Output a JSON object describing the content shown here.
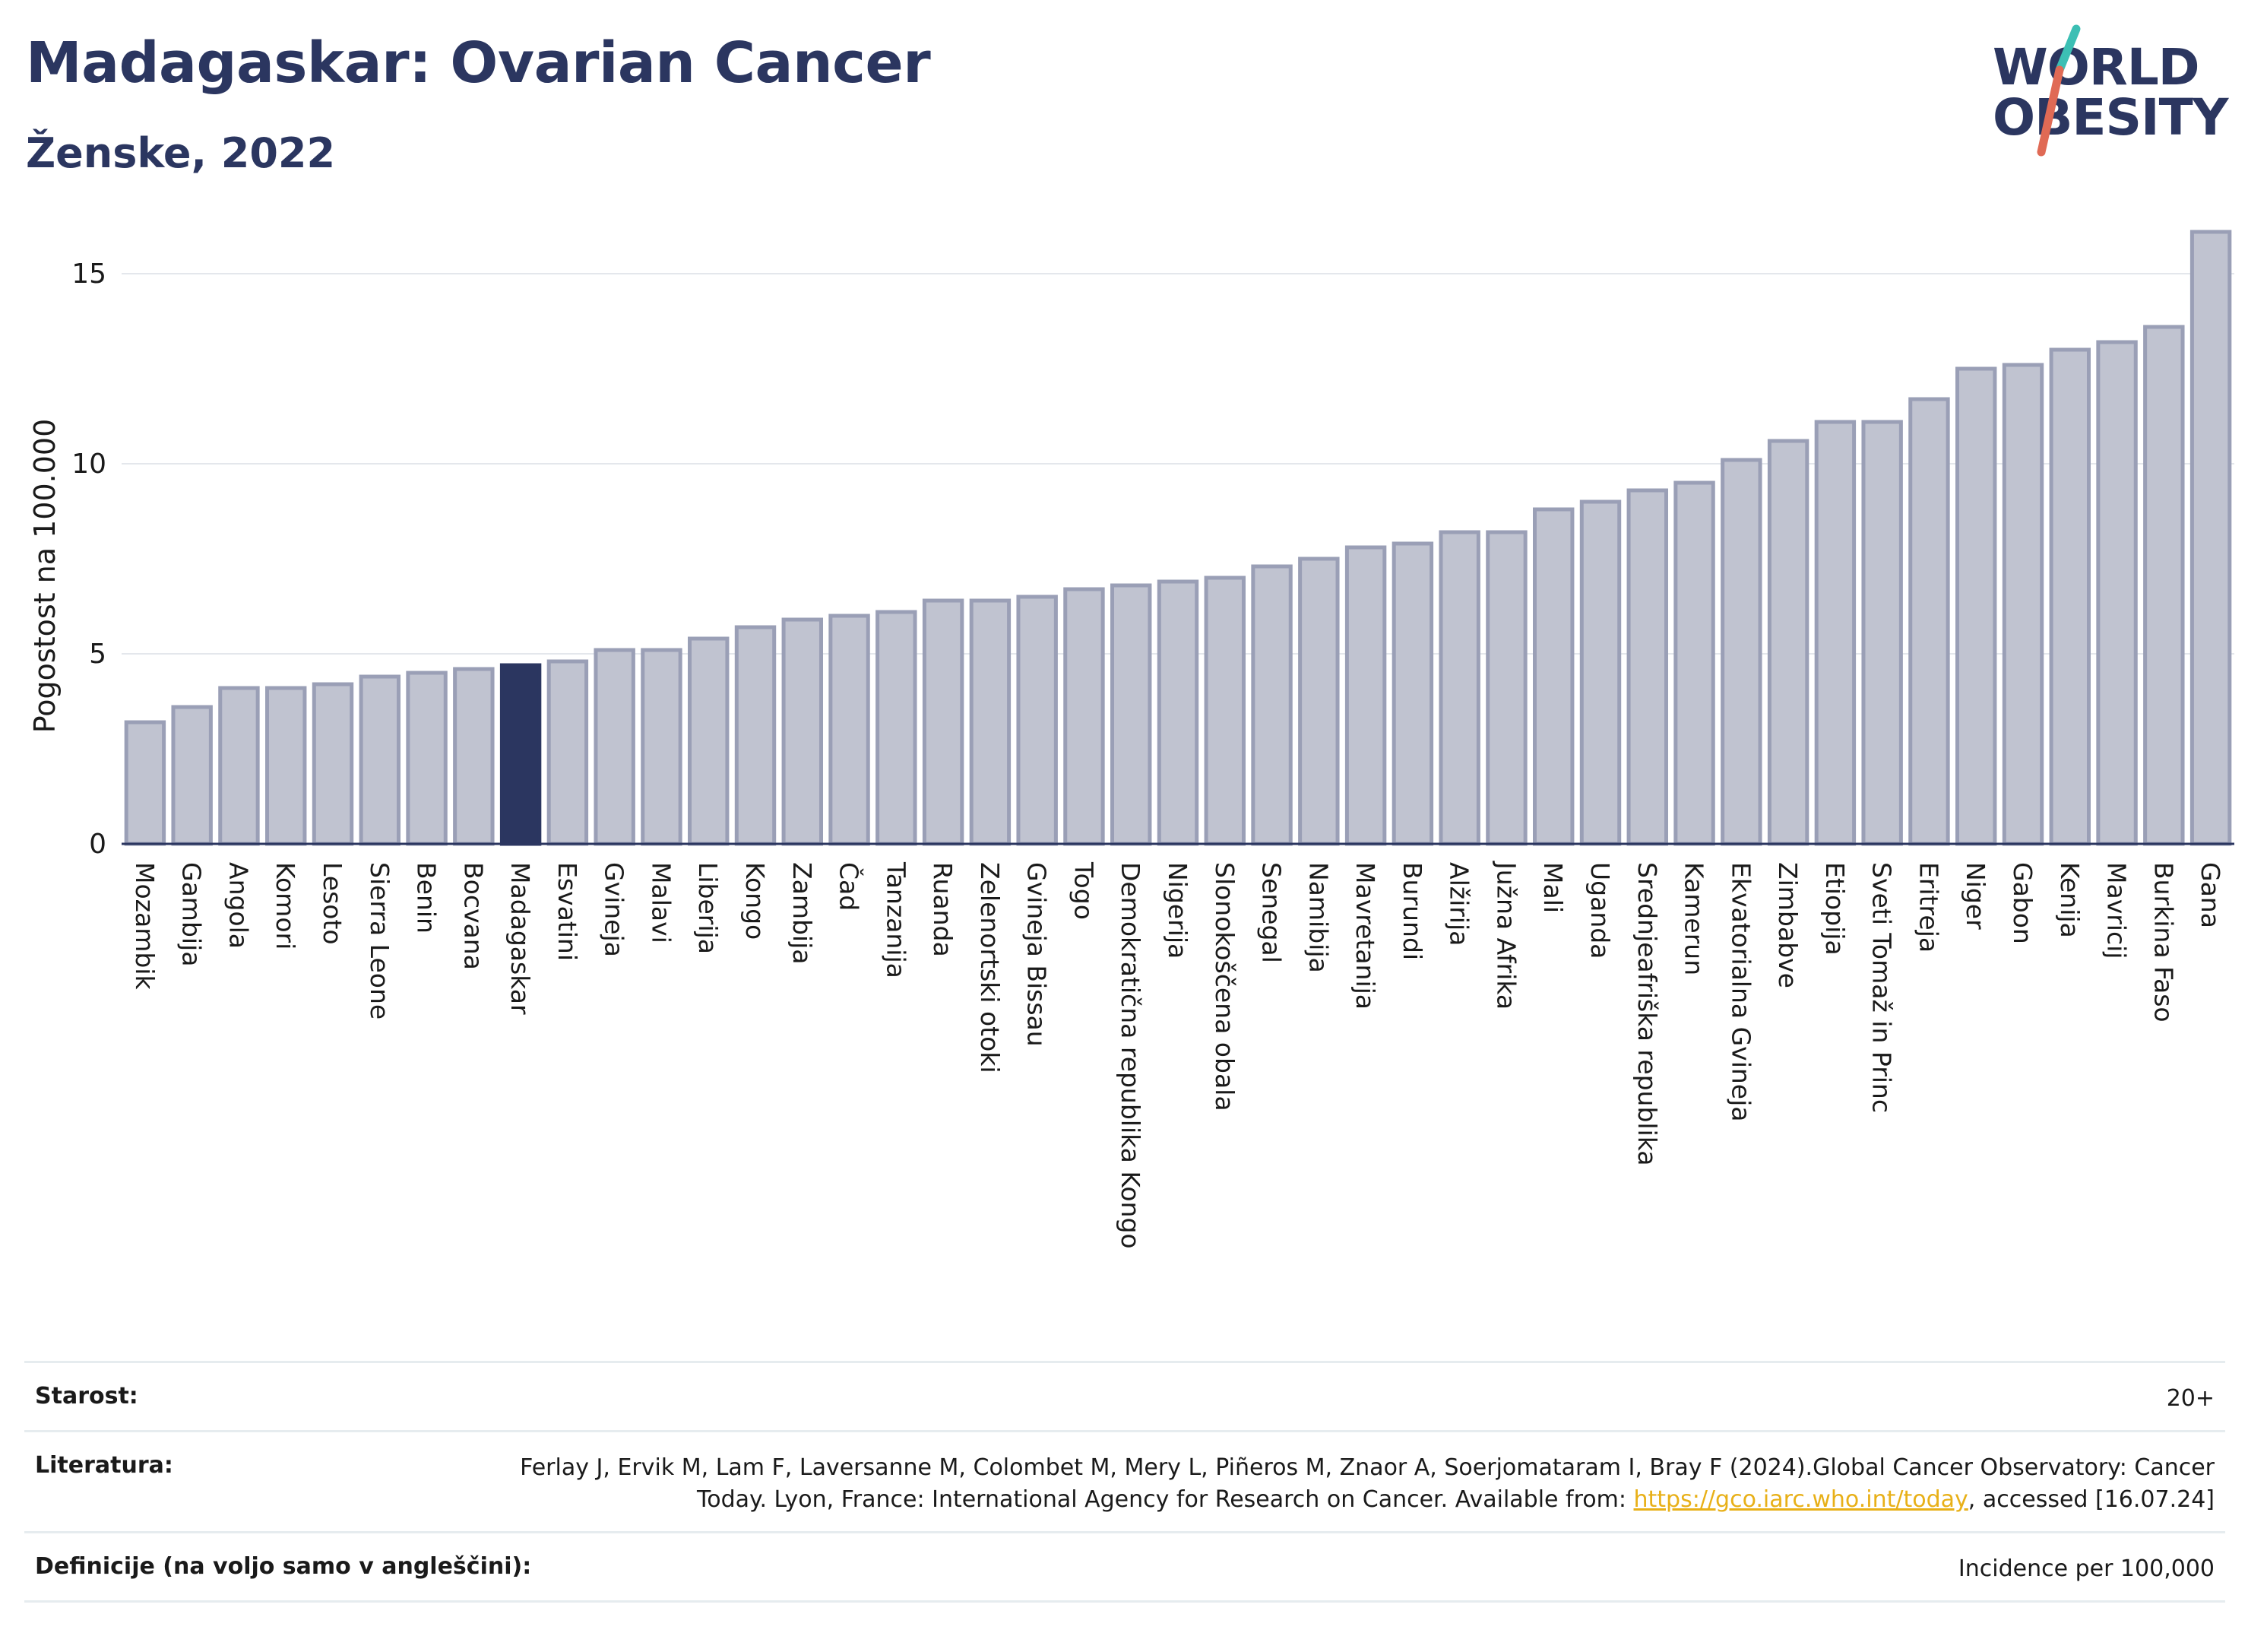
{
  "header": {
    "title": "Madagaskar: Ovarian Cancer",
    "subtitle": "Ženske, 2022"
  },
  "logo": {
    "line1": "WORLD",
    "line2": "OBESITY",
    "colors": {
      "text": "#2b3660",
      "slash_teal": "#3cbfb4",
      "slash_red": "#e06a55"
    }
  },
  "chart_data": {
    "type": "bar",
    "title": "",
    "xlabel": "",
    "ylabel": "Pogostost na 100.000",
    "ylim": [
      0,
      16.5
    ],
    "yticks": [
      0,
      5,
      10,
      15
    ],
    "grid": true,
    "highlight": "Madagaskar",
    "colors": {
      "bar": "#c0c3d0",
      "bar_edge": "#9a9fb6",
      "highlight": "#2b3660"
    },
    "categories": [
      "Mozambik",
      "Gambija",
      "Angola",
      "Komori",
      "Lesoto",
      "Sierra Leone",
      "Benin",
      "Bocvana",
      "Madagaskar",
      "Esvatini",
      "Gvineja",
      "Malavi",
      "Liberija",
      "Kongo",
      "Zambija",
      "Čad",
      "Tanzanija",
      "Ruanda",
      "Zelenortski otoki",
      "Gvineja Bissau",
      "Togo",
      "Demokratična republika Kongo",
      "Nigerija",
      "Slonokoščena obala",
      "Senegal",
      "Namibija",
      "Mavretanija",
      "Burundi",
      "Alžirija",
      "Južna Afrika",
      "Mali",
      "Uganda",
      "Srednjeafriška republika",
      "Kamerun",
      "Ekvatorialna Gvineja",
      "Zimbabve",
      "Etiopija",
      "Sveti Tomaž in Princ",
      "Eritreja",
      "Niger",
      "Gabon",
      "Kenija",
      "Mavricij",
      "Burkina Faso",
      "Gana"
    ],
    "values": [
      3.2,
      3.6,
      4.1,
      4.1,
      4.2,
      4.4,
      4.5,
      4.6,
      4.7,
      4.8,
      5.1,
      5.1,
      5.4,
      5.7,
      5.9,
      6.0,
      6.1,
      6.4,
      6.4,
      6.5,
      6.7,
      6.8,
      6.9,
      7.0,
      7.3,
      7.5,
      7.8,
      7.9,
      8.2,
      8.2,
      8.8,
      9.0,
      9.3,
      9.5,
      10.1,
      10.6,
      11.1,
      11.1,
      11.7,
      12.5,
      12.6,
      13.0,
      13.2,
      13.6,
      16.1
    ]
  },
  "info": {
    "age_label": "Starost:",
    "age_value": "20+",
    "lit_label": "Literatura:",
    "lit_text_before": "Ferlay J, Ervik M, Lam F, Laversanne M, Colombet M, Mery L, Piñeros M, Znaor A, Soerjomataram I, Bray F (2024).Global Cancer Observatory: Cancer Today. Lyon, France: International Agency for Research on Cancer. Available from: ",
    "lit_link": "https://gco.iarc.who.int/today",
    "lit_text_after": ", accessed [16.07.24]",
    "def_label": "Definicije (na voljo samo v angleščini):",
    "def_value": "Incidence per 100,000"
  }
}
